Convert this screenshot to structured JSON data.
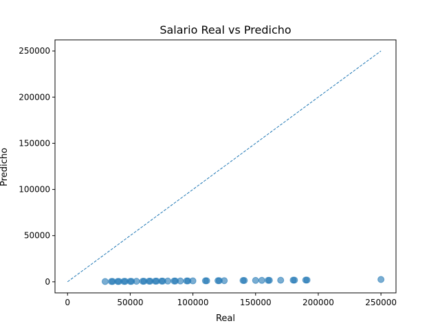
{
  "chart_data": {
    "type": "scatter",
    "title": "Salario Real vs Predicho",
    "xlabel": "Real",
    "ylabel": "Predicho",
    "xlim": [
      -10000,
      262000
    ],
    "ylim": [
      -12000,
      262000
    ],
    "x_ticks": [
      0,
      50000,
      100000,
      150000,
      200000,
      250000
    ],
    "y_ticks": [
      0,
      50000,
      100000,
      150000,
      200000,
      250000
    ],
    "grid": false,
    "point_color": "#1f77b4",
    "reference_line": {
      "x": [
        0,
        250000
      ],
      "y": [
        0,
        250000
      ],
      "style": "dashed",
      "color": "#1f77b4"
    },
    "points": [
      {
        "x": 30000,
        "y": 300
      },
      {
        "x": 35000,
        "y": 350
      },
      {
        "x": 36000,
        "y": 360
      },
      {
        "x": 40000,
        "y": 400
      },
      {
        "x": 41000,
        "y": 410
      },
      {
        "x": 45000,
        "y": 450
      },
      {
        "x": 46000,
        "y": 460
      },
      {
        "x": 50000,
        "y": 500
      },
      {
        "x": 51000,
        "y": 510
      },
      {
        "x": 55000,
        "y": 550
      },
      {
        "x": 60000,
        "y": 600
      },
      {
        "x": 61000,
        "y": 610
      },
      {
        "x": 65000,
        "y": 650
      },
      {
        "x": 66000,
        "y": 660
      },
      {
        "x": 70000,
        "y": 700
      },
      {
        "x": 71000,
        "y": 710
      },
      {
        "x": 75000,
        "y": 750
      },
      {
        "x": 76000,
        "y": 760
      },
      {
        "x": 80000,
        "y": 800
      },
      {
        "x": 85000,
        "y": 850
      },
      {
        "x": 86000,
        "y": 860
      },
      {
        "x": 90000,
        "y": 900
      },
      {
        "x": 95000,
        "y": 950
      },
      {
        "x": 96000,
        "y": 960
      },
      {
        "x": 100000,
        "y": 1000
      },
      {
        "x": 110000,
        "y": 1100
      },
      {
        "x": 111000,
        "y": 1110
      },
      {
        "x": 120000,
        "y": 1200
      },
      {
        "x": 121000,
        "y": 1210
      },
      {
        "x": 125000,
        "y": 1250
      },
      {
        "x": 140000,
        "y": 1400
      },
      {
        "x": 141000,
        "y": 1410
      },
      {
        "x": 150000,
        "y": 1500
      },
      {
        "x": 155000,
        "y": 1550
      },
      {
        "x": 160000,
        "y": 1600
      },
      {
        "x": 161000,
        "y": 1610
      },
      {
        "x": 170000,
        "y": 1700
      },
      {
        "x": 180000,
        "y": 1800
      },
      {
        "x": 181000,
        "y": 1810
      },
      {
        "x": 190000,
        "y": 1900
      },
      {
        "x": 191000,
        "y": 1910
      },
      {
        "x": 250000,
        "y": 2500
      }
    ]
  }
}
